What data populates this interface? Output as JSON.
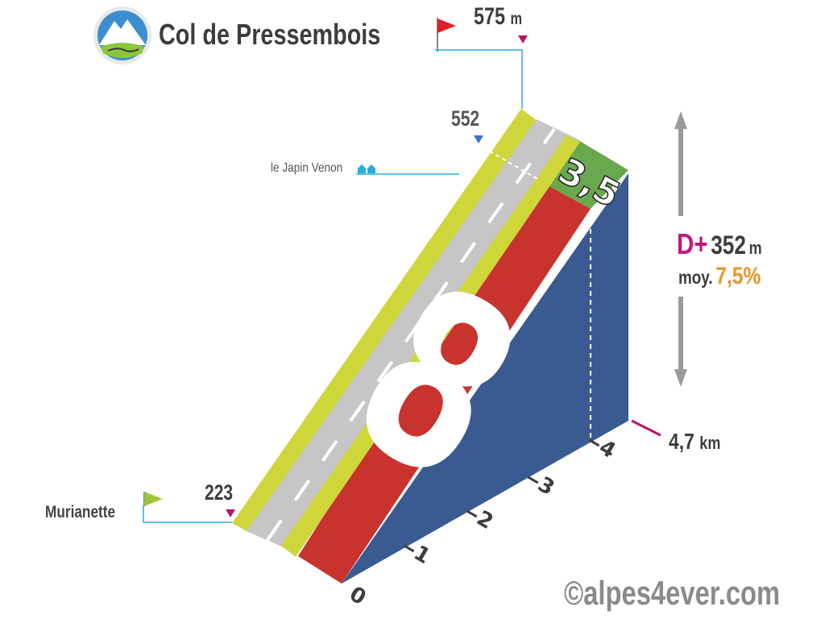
{
  "title": "Col de Pressembois",
  "summit": {
    "altitude": "575",
    "unit": "m"
  },
  "start": {
    "name": "Murianette",
    "altitude": "223"
  },
  "waypoint": {
    "altitude": "552",
    "village": "le Japin Venon"
  },
  "elevation_gain": {
    "label": "D+",
    "value": "352",
    "unit": "m"
  },
  "average_gradient": {
    "label": "moy.",
    "value": "7,5%"
  },
  "total_distance": {
    "value": "4,7",
    "unit": "km"
  },
  "segments": [
    {
      "from_km": 0,
      "to_km": 3.5,
      "gradient": "8",
      "color": "#c8332e"
    },
    {
      "from_km": 3.5,
      "to_km": 4.7,
      "gradient": "3,5",
      "color": "#6aa84f"
    }
  ],
  "km_ticks": [
    "0",
    "1",
    "2",
    "3",
    "4"
  ],
  "credit": "©alpes4ever.com",
  "colors": {
    "road": "#c6c6c6",
    "shoulder": "#cfd63a",
    "side_face": "#3a5b92",
    "summit_flag": "#e02028",
    "start_flag": "#9ec43a",
    "marker": "#b8156f",
    "leader_line": "#29aae1"
  }
}
